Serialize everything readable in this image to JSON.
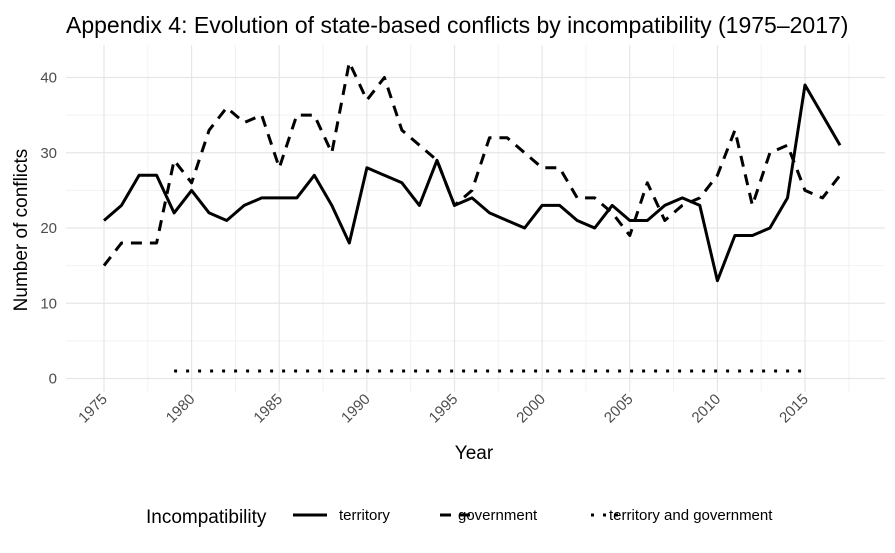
{
  "chart_data": {
    "type": "line",
    "title": "Appendix 4: Evolution of state-based conflicts by incompatibility (1975–2017)",
    "xlabel": "Year",
    "ylabel": "Number of conflicts",
    "xlim": [
      1975,
      2017
    ],
    "ylim": [
      0,
      43
    ],
    "x_ticks": [
      "1975",
      "1980",
      "1985",
      "1990",
      "1995",
      "2000",
      "2005",
      "2010",
      "2015"
    ],
    "y_ticks": [
      "0",
      "10",
      "20",
      "30",
      "40"
    ],
    "grid": true,
    "legend": {
      "title": "Incompatibility",
      "position": "bottom"
    },
    "series": [
      {
        "name": "territory",
        "style": "solid",
        "x": [
          1975,
          1976,
          1977,
          1978,
          1979,
          1980,
          1981,
          1982,
          1983,
          1984,
          1985,
          1986,
          1987,
          1988,
          1989,
          1990,
          1991,
          1992,
          1993,
          1994,
          1995,
          1996,
          1997,
          1998,
          1999,
          2000,
          2001,
          2002,
          2003,
          2004,
          2005,
          2006,
          2007,
          2008,
          2009,
          2010,
          2011,
          2012,
          2013,
          2014,
          2015,
          2016,
          2017
        ],
        "values": [
          21,
          23,
          27,
          27,
          22,
          25,
          22,
          21,
          23,
          24,
          24,
          24,
          27,
          23,
          18,
          28,
          27,
          26,
          23,
          29,
          23,
          24,
          22,
          21,
          20,
          23,
          23,
          21,
          20,
          23,
          21,
          21,
          23,
          24,
          23,
          13,
          19,
          19,
          20,
          24,
          39,
          35,
          31
        ]
      },
      {
        "name": "government",
        "style": "dashed",
        "x": [
          1975,
          1976,
          1977,
          1978,
          1979,
          1980,
          1981,
          1982,
          1983,
          1984,
          1985,
          1986,
          1987,
          1988,
          1989,
          1990,
          1991,
          1992,
          1993,
          1994,
          1995,
          1996,
          1997,
          1998,
          1999,
          2000,
          2001,
          2002,
          2003,
          2004,
          2005,
          2006,
          2007,
          2008,
          2009,
          2010,
          2011,
          2012,
          2013,
          2014,
          2015,
          2016,
          2017
        ],
        "values": [
          15,
          18,
          18,
          18,
          29,
          26,
          33,
          36,
          34,
          35,
          28,
          35,
          35,
          30,
          42,
          37,
          40,
          33,
          31,
          29,
          23,
          25,
          32,
          32,
          30,
          28,
          28,
          24,
          24,
          22,
          19,
          26,
          21,
          23,
          24,
          27,
          33,
          23,
          30,
          31,
          25,
          24,
          27
        ]
      },
      {
        "name": "territory and government",
        "style": "dotted",
        "x": [
          1979,
          1980,
          1981,
          1982,
          1983,
          1984,
          1985,
          1986,
          1987,
          1988,
          1989,
          1990,
          1991,
          1992,
          1993,
          1994,
          1995,
          1996,
          1997,
          1998,
          1999,
          2000,
          2001,
          2002,
          2003,
          2004,
          2005,
          2006,
          2007,
          2008,
          2009,
          2010,
          2011,
          2012,
          2013,
          2014,
          2015
        ],
        "values": [
          1,
          1,
          1,
          1,
          1,
          1,
          1,
          1,
          1,
          1,
          1,
          1,
          1,
          1,
          1,
          1,
          1,
          1,
          1,
          1,
          1,
          1,
          1,
          1,
          1,
          1,
          1,
          1,
          1,
          1,
          1,
          1,
          1,
          1,
          1,
          1,
          1
        ]
      }
    ]
  }
}
